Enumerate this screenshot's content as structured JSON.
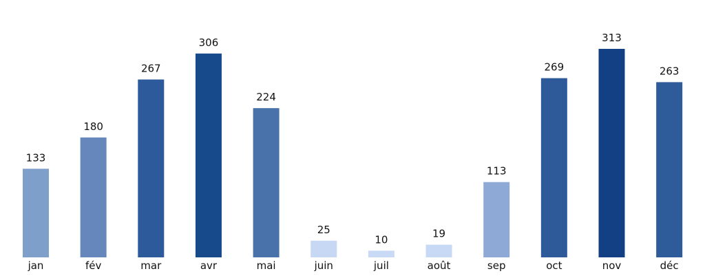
{
  "chart_data": {
    "type": "bar",
    "categories": [
      "jan",
      "fév",
      "mar",
      "avr",
      "mai",
      "juin",
      "juil",
      "août",
      "sep",
      "oct",
      "nov",
      "déc"
    ],
    "values": [
      133,
      180,
      267,
      306,
      224,
      25,
      10,
      19,
      113,
      269,
      313,
      263
    ],
    "ylim": [
      0,
      313
    ],
    "grid": false,
    "legend": "none",
    "colors": [
      "#7f9fcb",
      "#6587bb",
      "#2d5a9b",
      "#174a8a",
      "#4a72aa",
      "#c6d8f4",
      "#c8daf5",
      "#c7d9f4",
      "#8ea9d5",
      "#2e5a9a",
      "#133f85",
      "#2e5b9a"
    ]
  }
}
